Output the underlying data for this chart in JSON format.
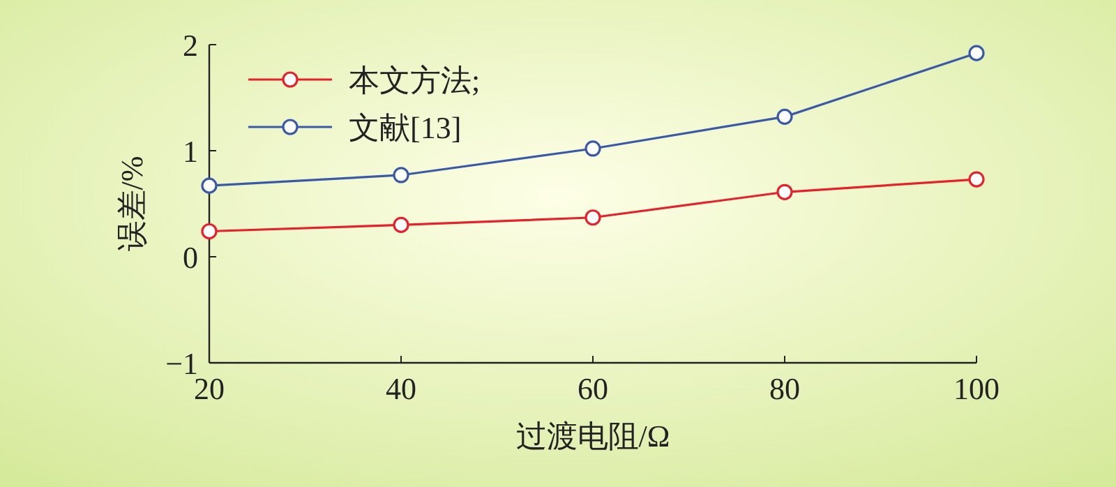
{
  "chart_data": {
    "type": "line",
    "xlabel": "过渡电阻/Ω",
    "ylabel": "误差/%",
    "x": [
      20,
      40,
      60,
      80,
      100
    ],
    "series": [
      {
        "name": "本文方法;",
        "color": "#e8202a",
        "values": [
          0.24,
          0.3,
          0.37,
          0.61,
          0.73
        ]
      },
      {
        "name": "文献[13]",
        "color": "#3a5aa8",
        "values": [
          0.67,
          0.77,
          1.02,
          1.32,
          1.92
        ]
      }
    ],
    "xlim": [
      20,
      100
    ],
    "xticks": [
      20,
      40,
      60,
      80,
      100
    ],
    "ylim": [
      -1,
      2
    ],
    "yticks": [
      {
        "value": -1,
        "label": "−1"
      },
      0,
      1,
      2
    ],
    "marker": "circle",
    "line_style": "solid",
    "legend": "top left",
    "grid": false
  }
}
